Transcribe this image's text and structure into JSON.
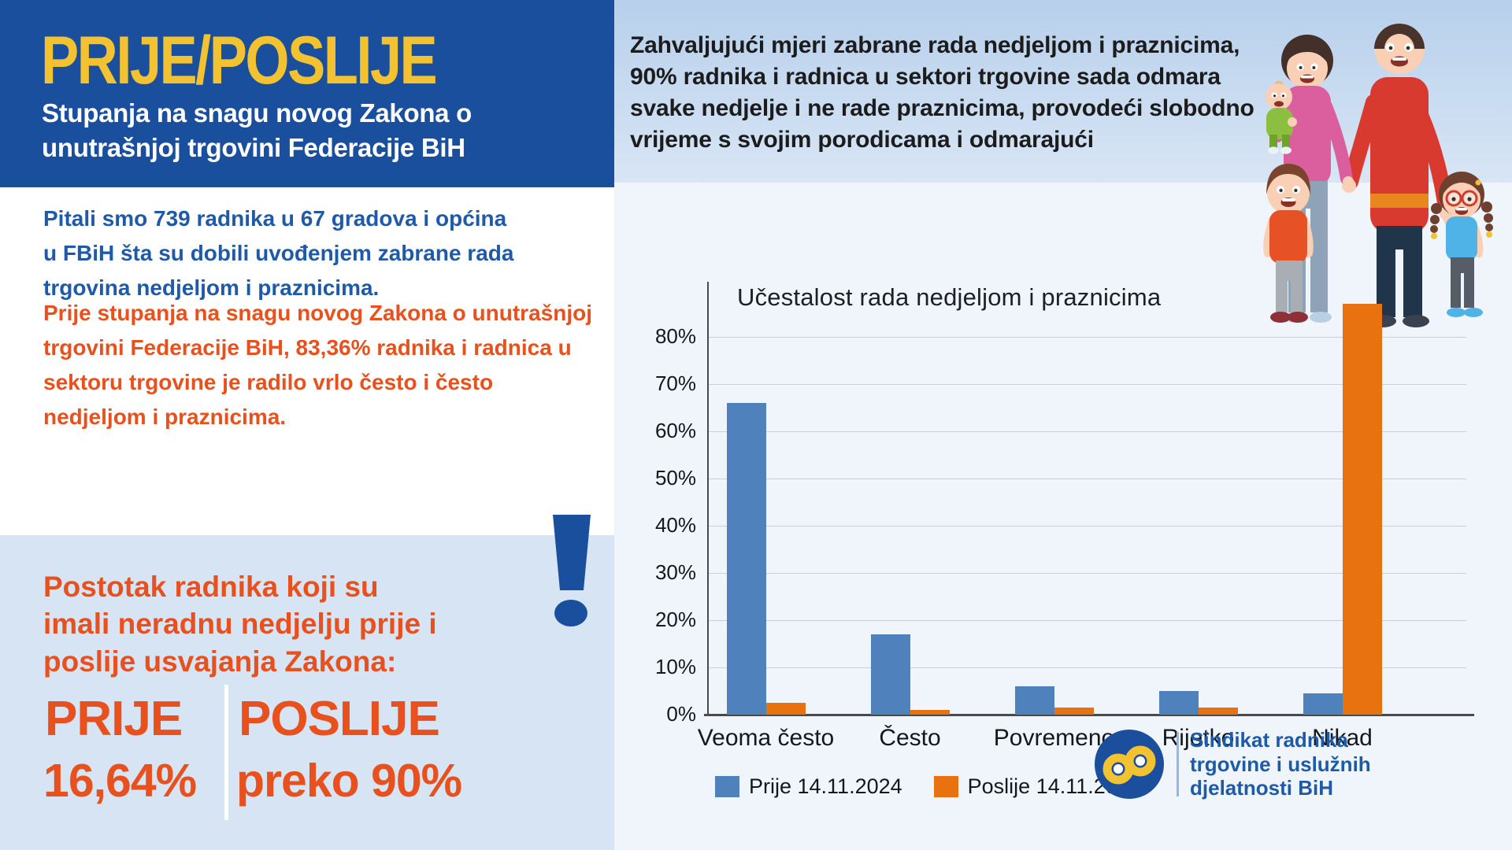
{
  "header": {
    "title": "PRIJE/POSLIJE",
    "subtitle": "Stupanja na snagu novog Zakona o\nunutrašnjoj trgovini Federacije BiH"
  },
  "banner": {
    "text": "Zahvaljujući mjeri zabrane rada nedjeljom i praznicima,\n90% radnika i radnica u sektori trgovine sada odmara\nsvake nedjelje i ne rade praznicima, provodeći slobodno\nvrijeme s svojim porodicama i odmarajući"
  },
  "intro": {
    "survey_text": "Pitali smo 739 radnika u 67 gradova i općina\nu FBiH šta su dobili uvođenjem zabrane rada\ntrgovina nedjeljom i praznicima.",
    "law_text_start": "Prije stupanja na snagu novog ",
    "law_text_bold": "Zakona o unutrašnjoj trgovini Federacije BiH,",
    "law_text_end": " 83,36% radnika i radnica u sektoru trgovine je radilo vrlo često i često nedjeljom i praznicima."
  },
  "stats": {
    "heading": "Postotak radnika koji su\nimali neradnu nedjelju prije i\nposlije usvajanja Zakona:",
    "before_label": "PRIJE",
    "before_value": "16,64%",
    "after_label": "POSLIJE",
    "after_value": "preko 90%"
  },
  "chart_data": {
    "type": "bar",
    "title": "Učestalost rada nedjeljom i praznicima",
    "categories": [
      "Veoma često",
      "Često",
      "Povremeno",
      "Rijetko",
      "Nikad"
    ],
    "series": [
      {
        "name": "Prije 14.11.2024",
        "color": "#4f81bd",
        "values": [
          66,
          17,
          6,
          5,
          4.5
        ]
      },
      {
        "name": "Poslije 14.11.2024",
        "color": "#e8720f",
        "values": [
          2.5,
          1,
          1.5,
          1.5,
          87
        ]
      }
    ],
    "yticks": [
      0,
      10,
      20,
      30,
      40,
      50,
      60,
      70,
      80
    ],
    "ytick_suffix": "%",
    "ylim": [
      0,
      88
    ],
    "grid": true,
    "legend_position": "bottom"
  },
  "logo": {
    "text": "Sindikat radnika\ntrgovine i uslužnih\ndjelatnosti BiH"
  },
  "illustration": {
    "description": "family with parents, baby, boy and girl"
  },
  "colors": {
    "header_blue": "#1a4f9d",
    "accent_orange": "#e8511d",
    "accent_yellow": "#f2c230",
    "panel_blue": "#d7e4f4",
    "text_blue": "#1f5aa8",
    "bar_blue": "#4f81bd",
    "bar_orange": "#e8720f",
    "chart_bg": "#eff5fa"
  }
}
